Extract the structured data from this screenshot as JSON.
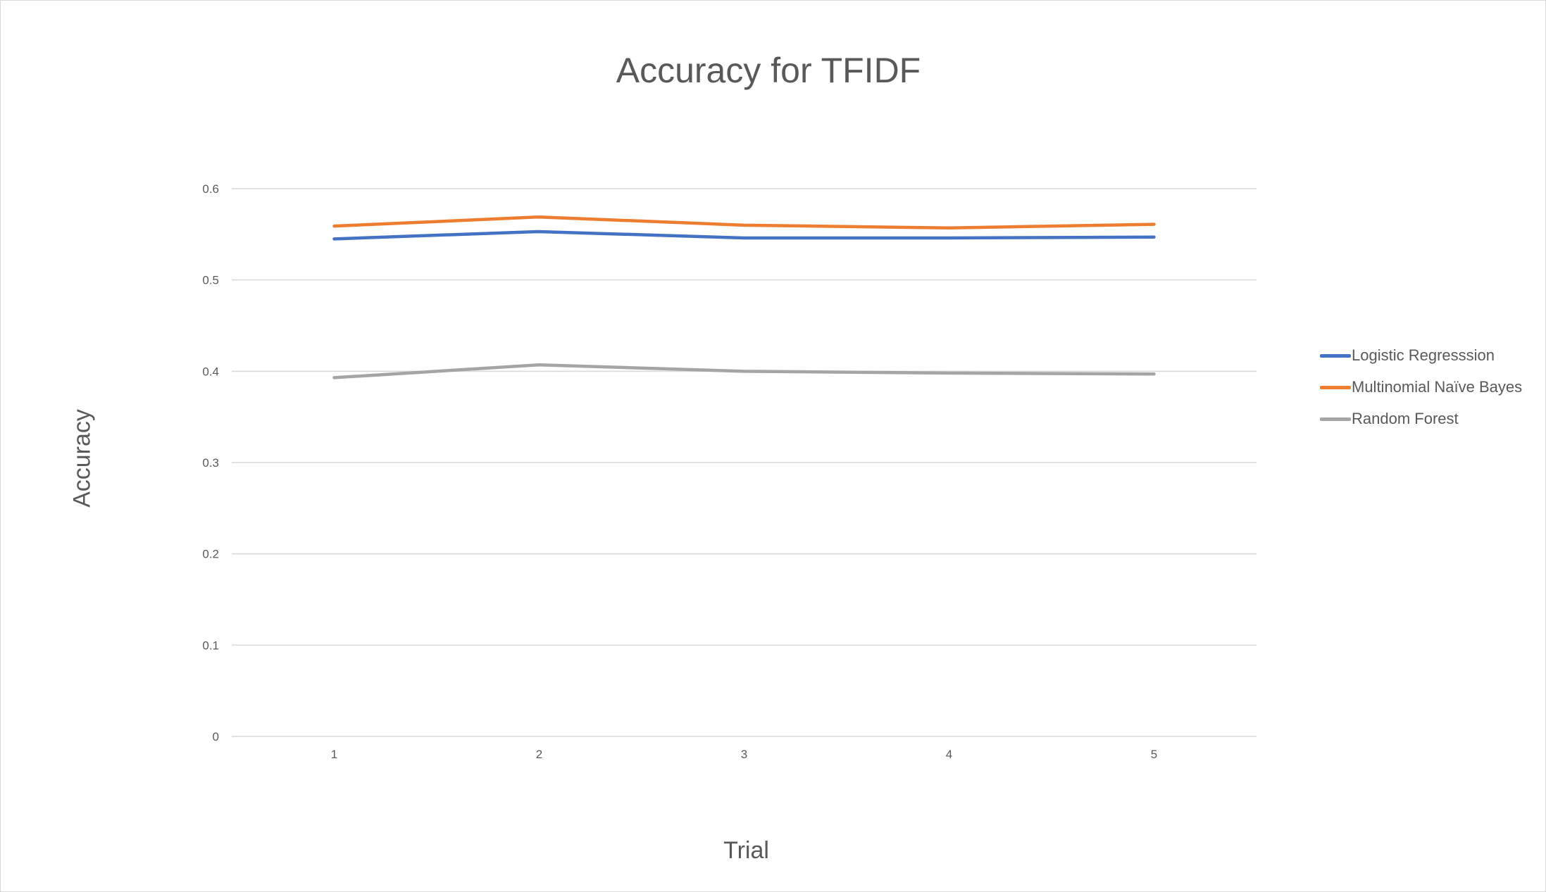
{
  "chart_data": {
    "type": "line",
    "title": "Accuracy for TFIDF",
    "xlabel": "Trial",
    "ylabel": "Accuracy",
    "categories": [
      "1",
      "2",
      "3",
      "4",
      "5"
    ],
    "ylim": [
      0,
      0.6
    ],
    "yticks": [
      "0",
      "0.1",
      "0.2",
      "0.3",
      "0.4",
      "0.5",
      "0.6"
    ],
    "grid": true,
    "legend_position": "right",
    "series": [
      {
        "name": "Logistic Regresssion",
        "color": "#4472C4",
        "values": [
          0.545,
          0.553,
          0.546,
          0.546,
          0.547
        ]
      },
      {
        "name": "Multinomial Naïve Bayes",
        "color": "#ED7D31",
        "values": [
          0.559,
          0.569,
          0.56,
          0.557,
          0.561
        ]
      },
      {
        "name": "Random Forest",
        "color": "#A5A5A5",
        "values": [
          0.393,
          0.407,
          0.4,
          0.398,
          0.397
        ]
      }
    ]
  }
}
